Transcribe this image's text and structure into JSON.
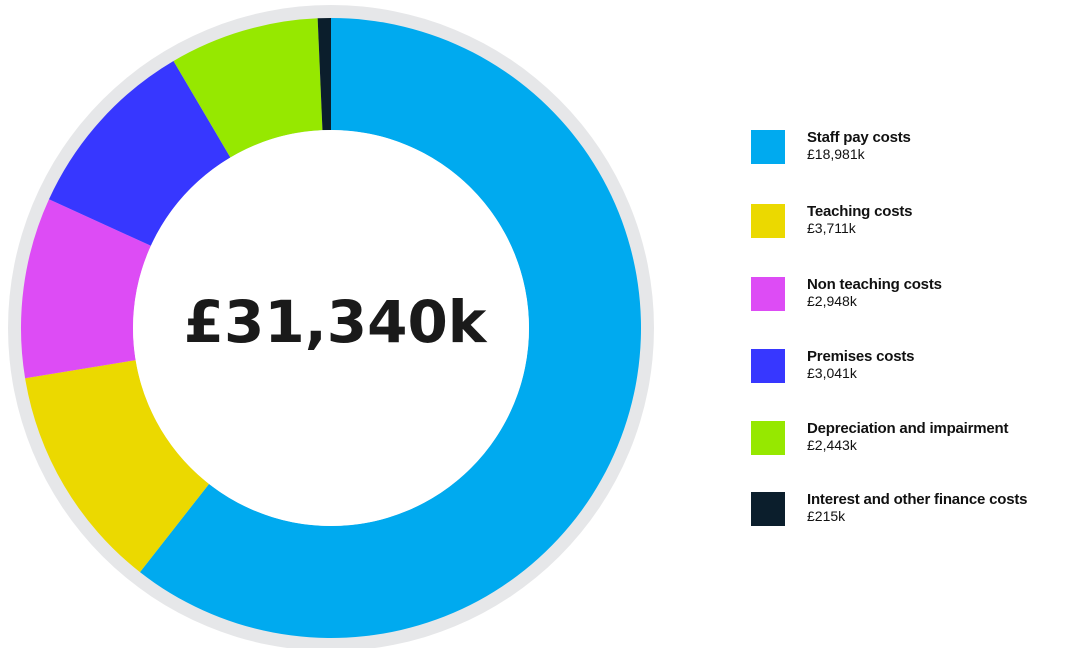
{
  "chart_data": {
    "type": "pie",
    "center_label": "£31,340k",
    "categories": [
      "Staff pay costs",
      "Teaching costs",
      "Non teaching costs",
      "Premises costs",
      "Depreciation and impairment",
      "Interest and other finance costs"
    ],
    "value_labels": [
      "£18,981k",
      "£3,711k",
      "£2,948k",
      "£3,041k",
      "£2,443k",
      "£215k"
    ],
    "values": [
      18981,
      3711,
      2948,
      3041,
      2443,
      215
    ],
    "colors": [
      "#00aaef",
      "#ebd900",
      "#dd4cf5",
      "#3737ff",
      "#96e800",
      "#0b1e2c"
    ],
    "ring_color": "#e6e7e9",
    "legend_position": "right",
    "title": "",
    "xlabel": "",
    "ylabel": ""
  }
}
